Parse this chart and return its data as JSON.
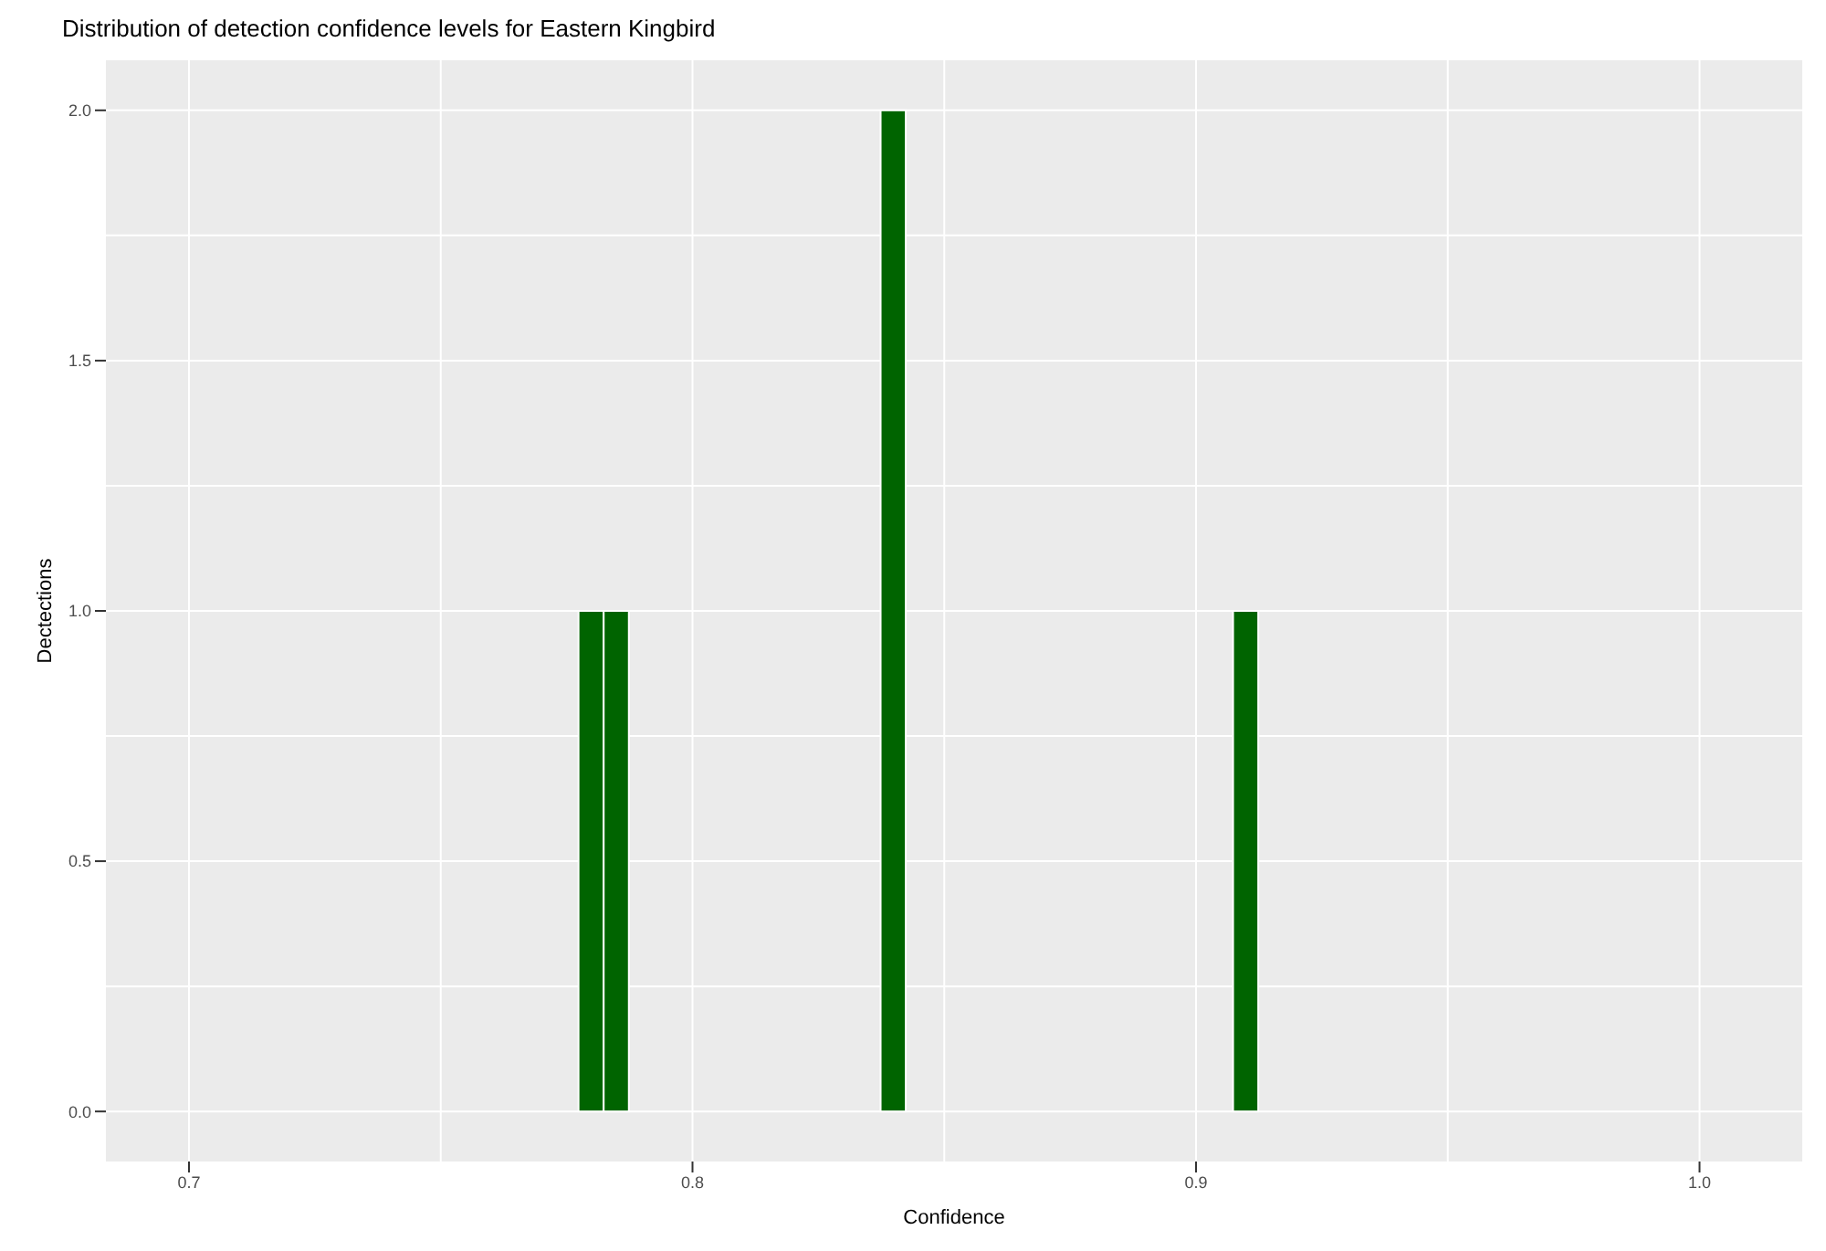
{
  "chart_data": {
    "type": "histogram",
    "title": "Distribution of detection confidence levels for Eastern Kingbird",
    "xlabel": "Confidence",
    "ylabel": "Dectections",
    "bins": [
      0.7775,
      0.7825,
      0.7875,
      0.7925,
      0.7975,
      0.8025,
      0.8075,
      0.8125,
      0.8175,
      0.8225,
      0.8275,
      0.8325,
      0.8375,
      0.8425,
      0.8475,
      0.8525,
      0.8575,
      0.8625,
      0.8675,
      0.8725,
      0.8775,
      0.8825,
      0.8875,
      0.8925,
      0.8975,
      0.9025,
      0.9075,
      0.9125
    ],
    "values": [
      1,
      1,
      0,
      0,
      0,
      0,
      0,
      0,
      0,
      0,
      0,
      0,
      2,
      0,
      0,
      0,
      0,
      0,
      0,
      0,
      0,
      0,
      0,
      0,
      0,
      0,
      1
    ],
    "color": "#006400",
    "xlim": [
      0.6835,
      1.0204
    ],
    "xticks": [
      0.7,
      0.8,
      0.9,
      {
        "value": 1,
        "label": "1.0"
      }
    ],
    "ylim": [
      -0.1,
      2.1
    ],
    "yticks": [
      {
        "value": 0,
        "label": "0.0"
      },
      {
        "value": 0.5,
        "label": "0.5"
      },
      {
        "value": 1,
        "label": "1.0"
      },
      {
        "value": 1.5,
        "label": "1.5"
      },
      {
        "value": 2,
        "label": "2.0"
      }
    ],
    "grid": true
  }
}
